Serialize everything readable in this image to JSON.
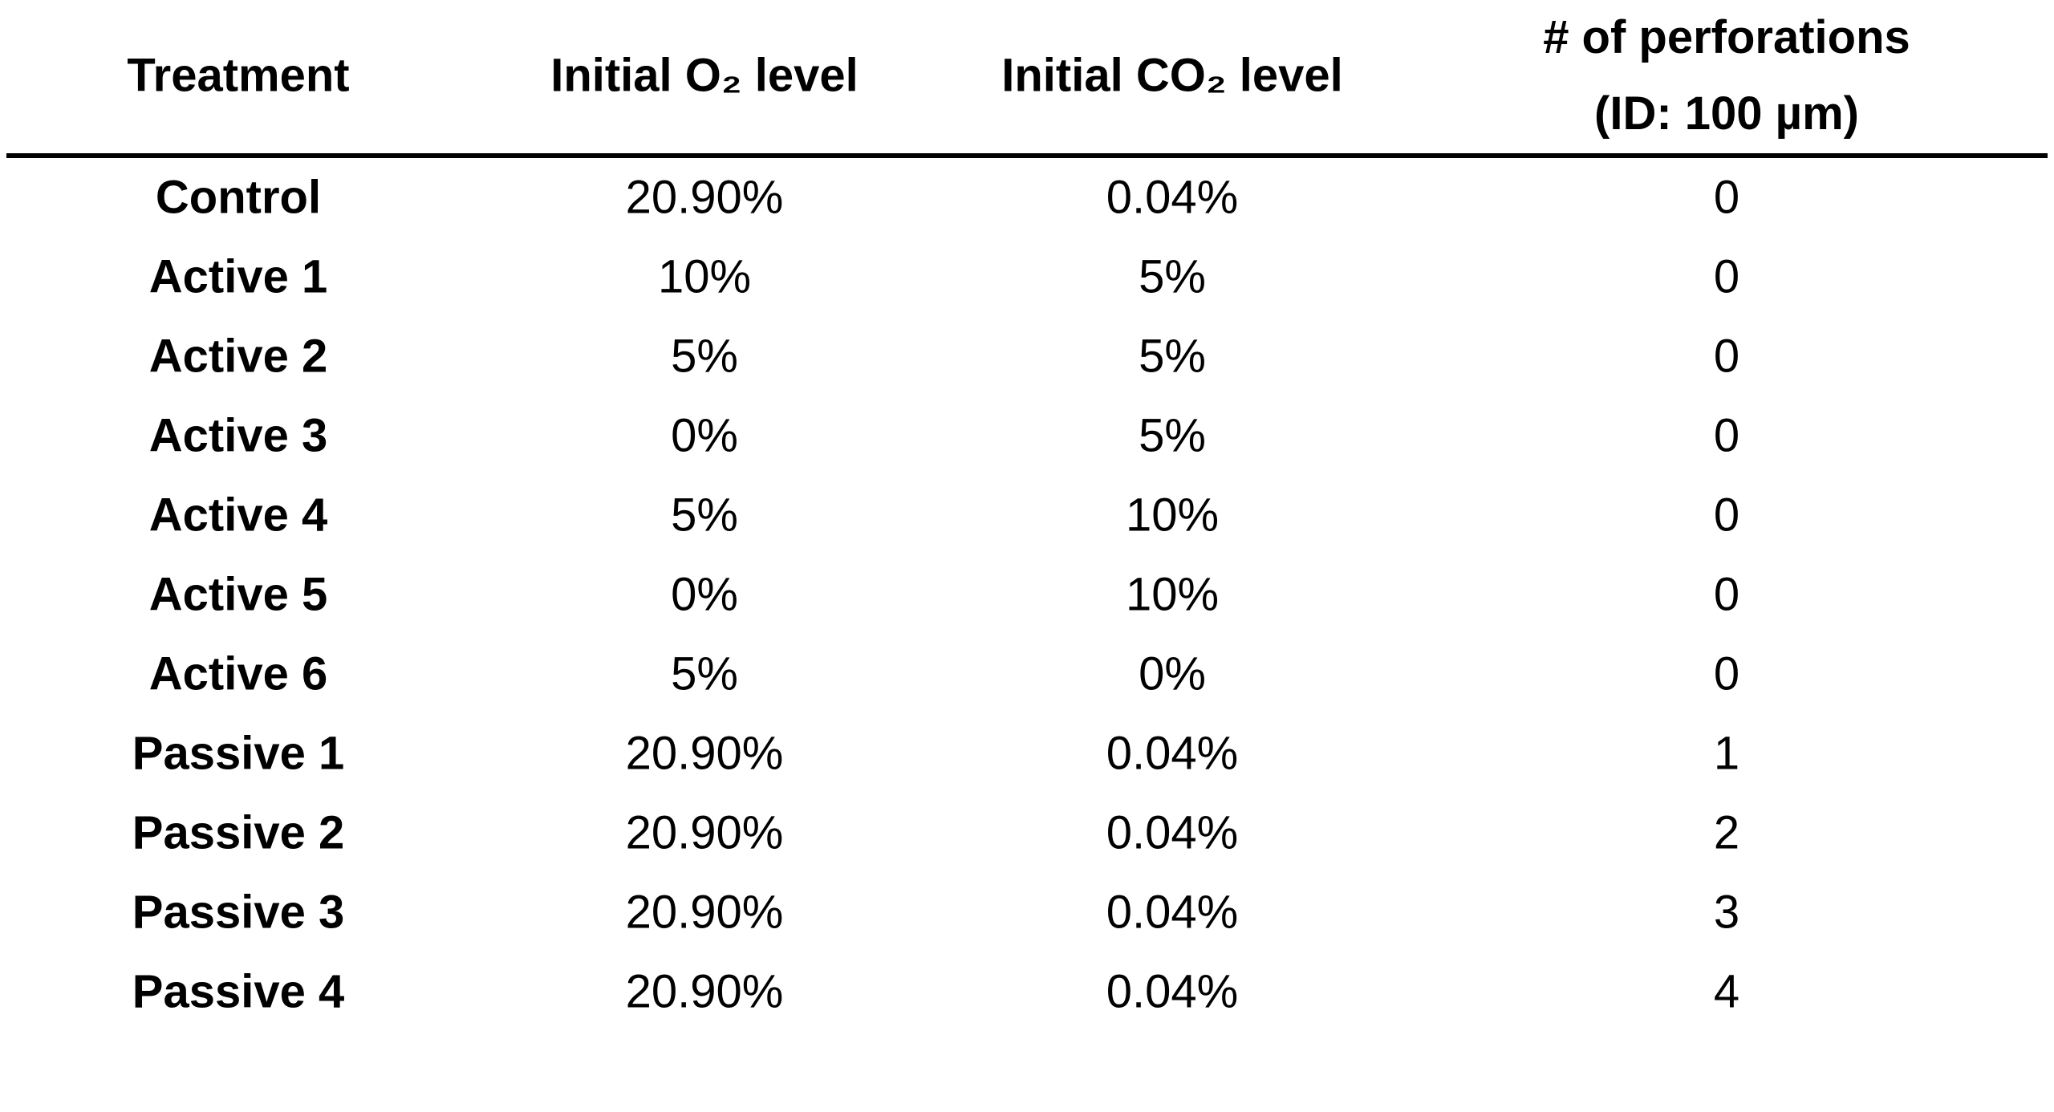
{
  "table": {
    "header": [
      "Treatment",
      "Initial O₂ level",
      "Initial CO₂ level",
      [
        "# of perforations",
        "(ID: 100 µm)"
      ]
    ],
    "rows": [
      [
        "Control",
        "20.90%",
        "0.04%",
        "0"
      ],
      [
        "Active 1",
        "10%",
        "5%",
        "0"
      ],
      [
        "Active 2",
        "5%",
        "5%",
        "0"
      ],
      [
        "Active 3",
        "0%",
        "5%",
        "0"
      ],
      [
        "Active 4",
        "5%",
        "10%",
        "0"
      ],
      [
        "Active 5",
        "0%",
        "10%",
        "0"
      ],
      [
        "Active 6",
        "5%",
        "0%",
        "0"
      ],
      [
        "Passive 1",
        "20.90%",
        "0.04%",
        "1"
      ],
      [
        "Passive 2",
        "20.90%",
        "0.04%",
        "2"
      ],
      [
        "Passive 3",
        "20.90%",
        "0.04%",
        "3"
      ],
      [
        "Passive 4",
        "20.90%",
        "0.04%",
        "4"
      ]
    ]
  }
}
